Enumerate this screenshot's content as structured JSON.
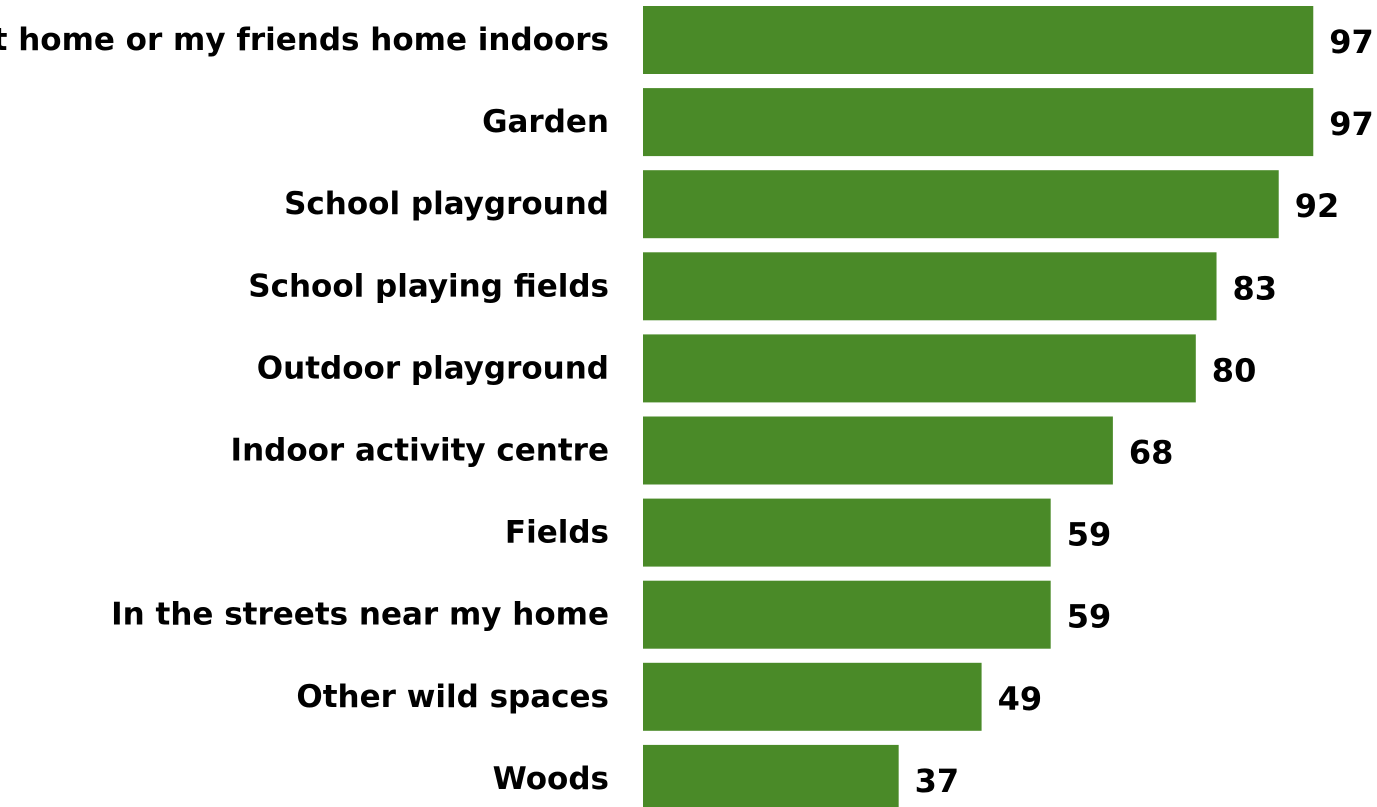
{
  "chart_data": {
    "type": "bar",
    "orientation": "horizontal",
    "categories": [
      "At home or my friends home indoors",
      "Garden",
      "School playground",
      "School playing fields",
      "Outdoor playground",
      "Indoor activity centre",
      "Fields",
      "In the streets near my home",
      "Other wild spaces",
      "Woods"
    ],
    "values": [
      97,
      97,
      92,
      83,
      80,
      68,
      59,
      59,
      49,
      37
    ],
    "title": "",
    "xlabel": "",
    "ylabel": "",
    "xlim": [
      0,
      100
    ],
    "grid": false,
    "legend": "none",
    "bar_color": "#4a8a28",
    "show_data_labels": true
  }
}
